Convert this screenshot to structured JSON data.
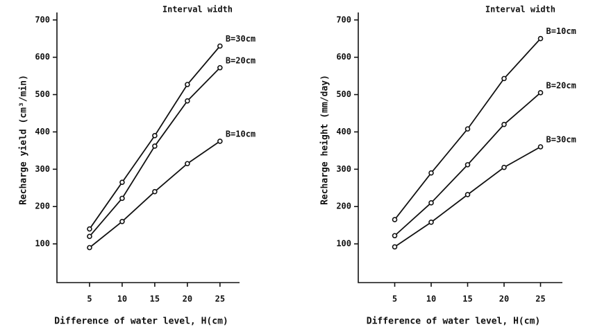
{
  "chart_data": [
    {
      "type": "line",
      "annotation": "Interval width",
      "xlabel": "Difference of water level, H(cm)",
      "ylabel": "Recharge yield (cm³/min)",
      "x": [
        5,
        10,
        15,
        20,
        25
      ],
      "xlim": [
        0,
        28
      ],
      "xticks": [
        5,
        10,
        15,
        20,
        25
      ],
      "ylim": [
        0,
        720
      ],
      "yticks": [
        100,
        200,
        300,
        400,
        500,
        600,
        700
      ],
      "color": "#111111",
      "series": [
        {
          "name": "B=30cm",
          "values": [
            140,
            265,
            390,
            527,
            630
          ]
        },
        {
          "name": "B=20cm",
          "values": [
            120,
            222,
            362,
            483,
            572
          ]
        },
        {
          "name": "B=10cm",
          "values": [
            90,
            160,
            240,
            315,
            375
          ]
        }
      ]
    },
    {
      "type": "line",
      "annotation": "Interval width",
      "xlabel": "Difference of water level, H(cm)",
      "ylabel": "Recharge height (mm/day)",
      "x": [
        5,
        10,
        15,
        20,
        25
      ],
      "xlim": [
        0,
        28
      ],
      "xticks": [
        5,
        10,
        15,
        20,
        25
      ],
      "ylim": [
        0,
        720
      ],
      "yticks": [
        100,
        200,
        300,
        400,
        500,
        600,
        700
      ],
      "color": "#111111",
      "series": [
        {
          "name": "B=10cm",
          "values": [
            165,
            290,
            408,
            543,
            650
          ]
        },
        {
          "name": "B=20cm",
          "values": [
            122,
            210,
            312,
            420,
            505
          ]
        },
        {
          "name": "B=30cm",
          "values": [
            92,
            158,
            232,
            305,
            360
          ]
        }
      ]
    }
  ]
}
